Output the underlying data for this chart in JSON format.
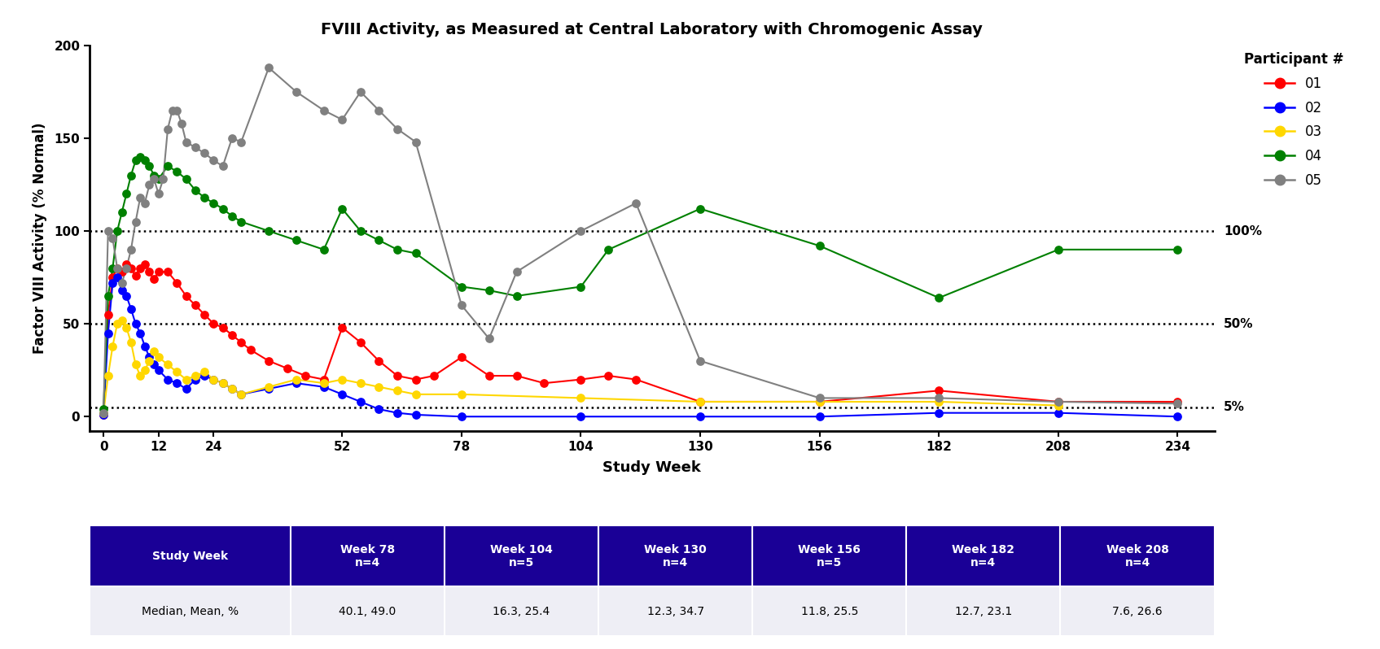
{
  "title": "FVIII Activity, as Measured at Central Laboratory with Chromogenic Assay",
  "xlabel": "Study Week",
  "ylabel": "Factor VIII Activity (% Normal)",
  "legend_title": "Participant #",
  "xlim": [
    -3,
    242
  ],
  "ylim": [
    -8,
    200
  ],
  "xticks": [
    0,
    12,
    24,
    52,
    78,
    104,
    130,
    156,
    182,
    208,
    234
  ],
  "yticks": [
    0,
    50,
    100,
    150,
    200
  ],
  "hlines": [
    5,
    50,
    100
  ],
  "hline_labels": [
    "5%",
    "50%",
    "100%"
  ],
  "participants": {
    "01": {
      "color": "#FF0000",
      "weeks": [
        0,
        1,
        2,
        3,
        4,
        5,
        6,
        7,
        8,
        9,
        10,
        11,
        12,
        14,
        16,
        18,
        20,
        22,
        24,
        26,
        28,
        30,
        32,
        36,
        40,
        44,
        48,
        52,
        56,
        60,
        64,
        68,
        72,
        78,
        84,
        90,
        96,
        104,
        110,
        116,
        130,
        156,
        182,
        208,
        234
      ],
      "values": [
        1,
        55,
        75,
        80,
        78,
        82,
        80,
        76,
        80,
        82,
        78,
        74,
        78,
        78,
        72,
        65,
        60,
        55,
        50,
        48,
        44,
        40,
        36,
        30,
        26,
        22,
        20,
        48,
        40,
        30,
        22,
        20,
        22,
        32,
        22,
        22,
        18,
        20,
        22,
        20,
        8,
        8,
        14,
        8,
        8
      ]
    },
    "02": {
      "color": "#0000FF",
      "weeks": [
        0,
        1,
        2,
        3,
        4,
        5,
        6,
        7,
        8,
        9,
        10,
        11,
        12,
        14,
        16,
        18,
        20,
        22,
        24,
        26,
        28,
        30,
        36,
        42,
        48,
        52,
        56,
        60,
        64,
        68,
        78,
        104,
        130,
        156,
        182,
        208,
        234
      ],
      "values": [
        1,
        45,
        72,
        75,
        68,
        65,
        58,
        50,
        45,
        38,
        32,
        28,
        25,
        20,
        18,
        15,
        20,
        22,
        20,
        18,
        15,
        12,
        15,
        18,
        16,
        12,
        8,
        4,
        2,
        1,
        0,
        0,
        0,
        0,
        2,
        2,
        0
      ]
    },
    "03": {
      "color": "#FFD700",
      "weeks": [
        0,
        1,
        2,
        3,
        4,
        5,
        6,
        7,
        8,
        9,
        10,
        11,
        12,
        14,
        16,
        18,
        20,
        22,
        24,
        26,
        28,
        30,
        36,
        42,
        48,
        52,
        56,
        60,
        64,
        68,
        78,
        104,
        130,
        156,
        182,
        208
      ],
      "values": [
        2,
        22,
        38,
        50,
        52,
        48,
        40,
        28,
        22,
        25,
        30,
        35,
        32,
        28,
        24,
        20,
        22,
        24,
        20,
        18,
        15,
        12,
        16,
        20,
        18,
        20,
        18,
        16,
        14,
        12,
        12,
        10,
        8,
        8,
        8,
        6
      ]
    },
    "04": {
      "color": "#008000",
      "weeks": [
        0,
        1,
        2,
        3,
        4,
        5,
        6,
        7,
        8,
        9,
        10,
        11,
        12,
        14,
        16,
        18,
        20,
        22,
        24,
        26,
        28,
        30,
        36,
        42,
        48,
        52,
        56,
        60,
        64,
        68,
        78,
        84,
        90,
        104,
        110,
        130,
        156,
        182,
        208,
        234
      ],
      "values": [
        4,
        65,
        80,
        100,
        110,
        120,
        130,
        138,
        140,
        138,
        135,
        130,
        128,
        135,
        132,
        128,
        122,
        118,
        115,
        112,
        108,
        105,
        100,
        95,
        90,
        112,
        100,
        95,
        90,
        88,
        70,
        68,
        65,
        70,
        90,
        112,
        92,
        64,
        90,
        90
      ]
    },
    "05": {
      "color": "#808080",
      "weeks": [
        0,
        1,
        2,
        3,
        4,
        5,
        6,
        7,
        8,
        9,
        10,
        11,
        12,
        13,
        14,
        15,
        16,
        17,
        18,
        20,
        22,
        24,
        26,
        28,
        30,
        36,
        42,
        48,
        52,
        56,
        60,
        64,
        68,
        78,
        84,
        90,
        104,
        116,
        130,
        156,
        182,
        208,
        234
      ],
      "values": [
        2,
        100,
        96,
        80,
        72,
        80,
        90,
        105,
        118,
        115,
        125,
        128,
        120,
        128,
        155,
        165,
        165,
        158,
        148,
        145,
        142,
        138,
        135,
        150,
        148,
        188,
        175,
        165,
        160,
        175,
        165,
        155,
        148,
        60,
        42,
        78,
        100,
        115,
        30,
        10,
        10,
        8,
        7
      ]
    }
  },
  "table": {
    "header_bg": "#1a0096",
    "header_text_color": "#FFFFFF",
    "row_bg": "#EEEEF5",
    "row_text_color": "#000000",
    "col_headers": [
      "Study Week",
      "Week 78\nn=4",
      "Week 104\nn=5",
      "Week 130\nn=4",
      "Week 156\nn=5",
      "Week 182\nn=4",
      "Week 208\nn=4"
    ],
    "row_label": "Median, Mean, %",
    "row_values": [
      "40.1, 49.0",
      "16.3, 25.4",
      "12.3, 34.7",
      "11.8, 25.5",
      "12.7, 23.1",
      "7.6, 26.6"
    ]
  }
}
